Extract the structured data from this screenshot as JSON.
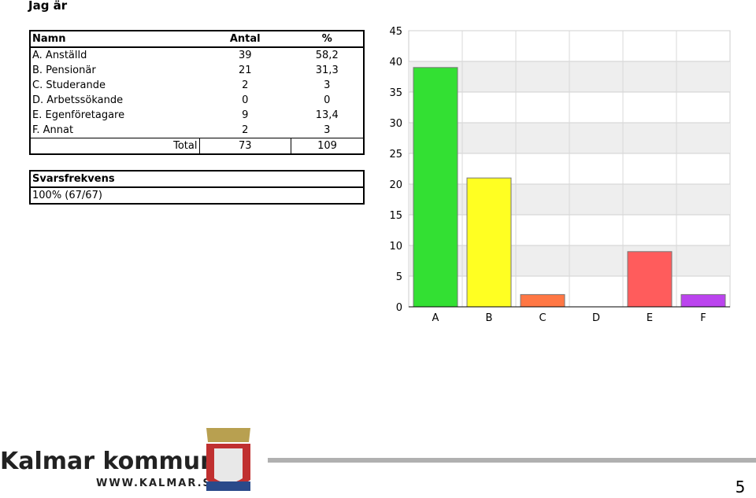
{
  "title": "Jag är",
  "table": {
    "header": [
      "Namn",
      "Antal",
      "%"
    ],
    "rows": [
      [
        "A. Anställd",
        "39",
        "58,2"
      ],
      [
        "B. Pensionär",
        "21",
        "31,3"
      ],
      [
        "C. Studerande",
        "2",
        "3"
      ],
      [
        "D. Arbetssökande",
        "0",
        "0"
      ],
      [
        "E. Egenföretagare",
        "9",
        "13,4"
      ],
      [
        "F. Annat",
        "2",
        "3"
      ]
    ],
    "total": [
      "Total",
      "73",
      "109"
    ]
  },
  "response": {
    "label": "Svarsfrekvens",
    "value": "100% (67/67)"
  },
  "chart_data": {
    "type": "bar",
    "categories": [
      "A",
      "B",
      "C",
      "D",
      "E",
      "F"
    ],
    "values": [
      39,
      21,
      2,
      0,
      9,
      2
    ],
    "colors": [
      "#33e033",
      "#ffff22",
      "#ff7744",
      "#4488ff",
      "#ff5c5c",
      "#bb44ee"
    ],
    "ylim": [
      0,
      45
    ],
    "yticks": [
      0,
      5,
      10,
      15,
      20,
      25,
      30,
      35,
      40,
      45
    ],
    "grid": true
  },
  "footer": {
    "brand": "Kalmar kommun",
    "url": "WWW.KALMAR.SE",
    "page": "5"
  }
}
